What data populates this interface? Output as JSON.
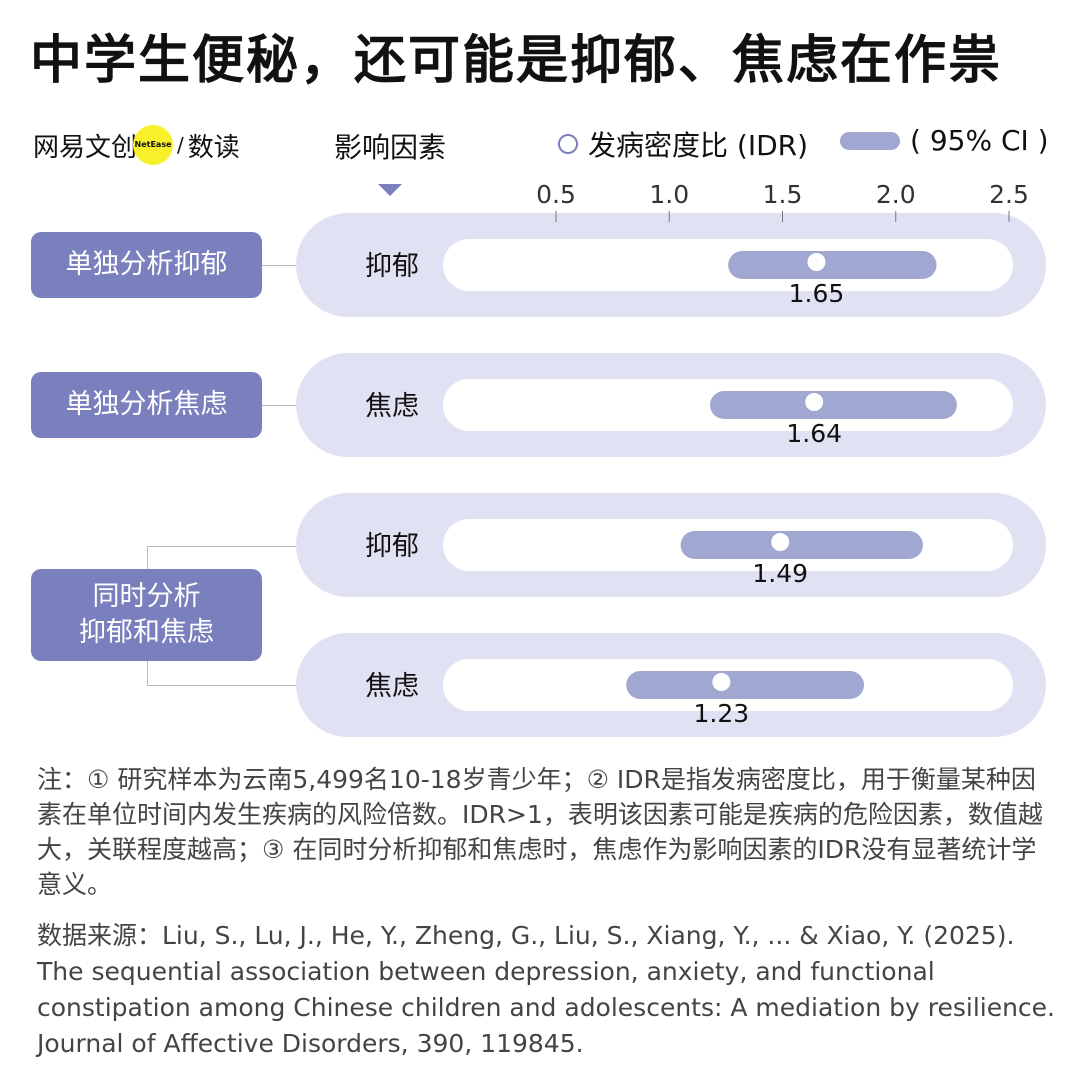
{
  "title": "中学生便秘，还可能是抑郁、焦虑在作祟",
  "brand": {
    "name": "网易文创",
    "badge": "NetEase",
    "slash": "/",
    "sub": "数读"
  },
  "factor_header": "影响因素",
  "groups": [
    {
      "label": "单独分析抑郁"
    },
    {
      "label": "单独分析焦虑"
    },
    {
      "label": "同时分析抑郁和焦虑",
      "line1": "同时分析",
      "line2": "抑郁和焦虑"
    }
  ],
  "chart_data": {
    "type": "forest",
    "title": "中学生便秘，还可能是抑郁、焦虑在作祟",
    "legend": [
      {
        "label": "发病密度比 (IDR)",
        "marker": "circle"
      },
      {
        "label": "( 95% CI )",
        "marker": "bar"
      }
    ],
    "legend_placement": "top-right",
    "xlim": [
      0.5,
      2.5
    ],
    "ticks": [
      "0.5",
      "1.0",
      "1.5",
      "2.0",
      "2.5"
    ],
    "tick_values": [
      0.5,
      1.0,
      1.5,
      2.0,
      2.5
    ],
    "rows": [
      {
        "group": 0,
        "factor": "抑郁",
        "idr": 1.65,
        "label": "1.65",
        "ci": [
          1.26,
          2.18
        ]
      },
      {
        "group": 1,
        "factor": "焦虑",
        "idr": 1.64,
        "label": "1.64",
        "ci": [
          1.18,
          2.27
        ]
      },
      {
        "group": 2,
        "factor": "抑郁",
        "idr": 1.49,
        "label": "1.49",
        "ci": [
          1.05,
          2.12
        ]
      },
      {
        "group": 2,
        "factor": "焦虑",
        "idr": 1.23,
        "label": "1.23",
        "ci": [
          0.81,
          1.86
        ]
      }
    ],
    "colors": {
      "bar": "#a0a8d2",
      "track": "#e1e1f4",
      "group": "#7a7fbd"
    }
  },
  "notes": "注：① 研究样本为云南5,499名10-18岁青少年；② IDR是指发病密度比，用于衡量某种因素在单位时间内发生疾病的风险倍数。IDR>1，表明该因素可能是疾病的危险因素，数值越大，关联程度越高；③ 在同时分析抑郁和焦虑时，焦虑作为影响因素的IDR没有显著统计学意义。",
  "source": "数据来源：Liu, S., Lu, J., He, Y., Zheng, G., Liu, S., Xiang, Y., ... & Xiao, Y. (2025). The sequential association between depression, anxiety, and functional constipation among Chinese children and adolescents: A mediation by resilience. Journal of Affective Disorders, 390, 119845."
}
